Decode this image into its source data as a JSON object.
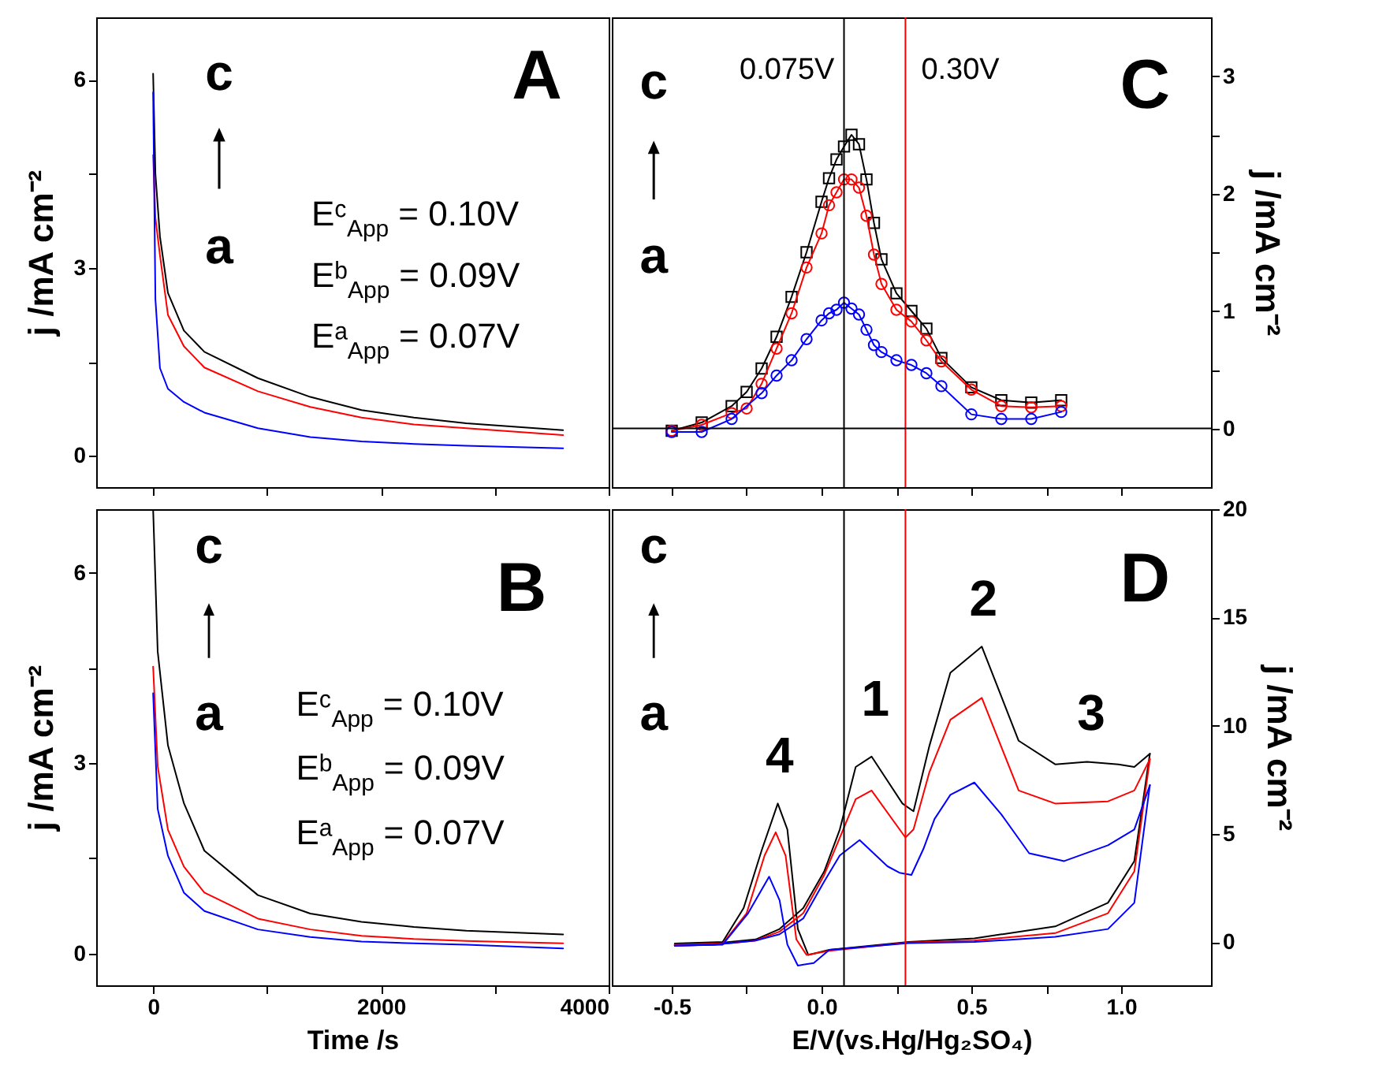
{
  "chart_data": [
    {
      "type": "line",
      "xlim": [
        -500,
        4000
      ],
      "xticks": [
        0,
        {
          "value": 1000,
          "label": null
        },
        2000,
        {
          "value": 3000,
          "label": null
        },
        4000
      ],
      "ylim": [
        -0.5,
        7
      ],
      "yticks": [
        0,
        {
          "value": 1.5,
          "label": null
        },
        3,
        {
          "value": 4.5,
          "label": null
        },
        6
      ],
      "ylabel": "j /mA cm⁻²",
      "tick_labels": "y",
      "annotations": [
        "A",
        "c",
        "a",
        "Eᶜ$_{App}$ = 0.10V",
        "Eᵇ$_{App}$ = 0.09V",
        "Eᵃ$_{App}$ = 0.07V"
      ],
      "series": [
        {
          "color": "#000000",
          "x": [
            0,
            20,
            60,
            130,
            270,
            450,
            920,
            1380,
            1830,
            2290,
            2750,
            3600
          ],
          "values": [
            6.1,
            4.5,
            3.5,
            2.6,
            2.0,
            1.66,
            1.24,
            0.94,
            0.73,
            0.61,
            0.52,
            0.41
          ]
        },
        {
          "color": "#ff0000",
          "x": [
            0,
            20,
            60,
            130,
            270,
            450,
            920,
            1380,
            1830,
            2290,
            2750,
            3600
          ],
          "values": [
            4.8,
            3.8,
            3.2,
            2.25,
            1.75,
            1.41,
            1.03,
            0.78,
            0.61,
            0.5,
            0.44,
            0.33
          ]
        },
        {
          "color": "#0000ff",
          "x": [
            0,
            20,
            60,
            130,
            270,
            450,
            920,
            1380,
            1830,
            2290,
            2750,
            3600
          ],
          "values": [
            5.8,
            2.5,
            1.4,
            1.07,
            0.86,
            0.69,
            0.44,
            0.3,
            0.23,
            0.19,
            0.16,
            0.12
          ]
        }
      ]
    },
    {
      "type": "line",
      "xlim": [
        -0.7,
        1.3
      ],
      "xticks": [
        -0.5,
        {
          "value": -0.25,
          "label": null
        },
        0,
        {
          "value": 0.25,
          "label": null
        },
        0.5,
        {
          "value": 0.75,
          "label": null
        },
        1
      ],
      "ylim": [
        -0.5,
        3.5
      ],
      "yticks": [
        0,
        {
          "value": 0.5,
          "label": null
        },
        1,
        {
          "value": 1.5,
          "label": null
        },
        2,
        {
          "value": 2.5,
          "label": null
        },
        3
      ],
      "ylabel": "j /mA cm⁻²",
      "tick_labels": "y",
      "ref_lines": [
        {
          "axis": "x",
          "value": 0.075,
          "label": "0.075V",
          "color": "#000000"
        },
        {
          "axis": "x",
          "value": 0.28,
          "label": "0.30V",
          "color": "#ff0000"
        },
        {
          "axis": "y",
          "value": 0,
          "color": "#000000"
        }
      ],
      "annotations": [
        "C",
        "c",
        "a"
      ],
      "series": [
        {
          "color": "#000000",
          "marker": "square",
          "x": [
            -0.5,
            -0.4,
            -0.3,
            -0.25,
            -0.2,
            -0.15,
            -0.1,
            -0.05,
            0,
            0.025,
            0.05,
            0.075,
            0.1,
            0.125,
            0.15,
            0.175,
            0.2,
            0.25,
            0.3,
            0.35,
            0.4,
            0.5,
            0.6,
            0.7,
            0.8
          ],
          "values": [
            -0.02,
            0.05,
            0.19,
            0.31,
            0.51,
            0.78,
            1.12,
            1.5,
            1.93,
            2.13,
            2.29,
            2.4,
            2.5,
            2.42,
            2.12,
            1.75,
            1.44,
            1.15,
            1.0,
            0.85,
            0.6,
            0.35,
            0.24,
            0.22,
            0.24
          ]
        },
        {
          "color": "#ff0000",
          "marker": "circle",
          "x": [
            -0.5,
            -0.4,
            -0.3,
            -0.25,
            -0.2,
            -0.15,
            -0.1,
            -0.05,
            0,
            0.025,
            0.05,
            0.075,
            0.1,
            0.125,
            0.15,
            0.175,
            0.2,
            0.25,
            0.3,
            0.35,
            0.4,
            0.5,
            0.6,
            0.7,
            0.8
          ],
          "values": [
            -0.02,
            0.03,
            0.13,
            0.17,
            0.38,
            0.68,
            0.98,
            1.37,
            1.66,
            1.9,
            2.01,
            2.12,
            2.12,
            2.05,
            1.81,
            1.48,
            1.23,
            1.01,
            0.91,
            0.75,
            0.57,
            0.33,
            0.19,
            0.18,
            0.19
          ]
        },
        {
          "color": "#0000ff",
          "marker": "circle",
          "x": [
            -0.5,
            -0.4,
            -0.3,
            -0.2,
            -0.15,
            -0.1,
            -0.05,
            0,
            0.025,
            0.05,
            0.075,
            0.1,
            0.125,
            0.15,
            0.175,
            0.2,
            0.25,
            0.3,
            0.35,
            0.4,
            0.5,
            0.6,
            0.7,
            0.8
          ],
          "values": [
            -0.03,
            -0.03,
            0.08,
            0.3,
            0.45,
            0.58,
            0.76,
            0.92,
            0.98,
            1.01,
            1.07,
            1.02,
            0.97,
            0.84,
            0.71,
            0.65,
            0.58,
            0.54,
            0.47,
            0.36,
            0.12,
            0.08,
            0.08,
            0.14
          ]
        }
      ]
    },
    {
      "type": "line",
      "xlim": [
        -500,
        4000
      ],
      "xticks": [
        0,
        {
          "value": 1000,
          "label": null
        },
        2000,
        {
          "value": 3000,
          "label": null
        },
        4000
      ],
      "ylim": [
        -0.5,
        7
      ],
      "yticks": [
        0,
        {
          "value": 1.5,
          "label": null
        },
        3,
        {
          "value": 4.5,
          "label": null
        },
        6
      ],
      "xlabel": "Time /s",
      "ylabel": "j /mA cm⁻²",
      "annotations": [
        "B",
        "c",
        "a",
        "Eᶜ$_{App}$ = 0.10V",
        "Eᵇ$_{App}$ = 0.09V",
        "Eᵃ$_{App}$ = 0.07V"
      ],
      "series": [
        {
          "color": "#000000",
          "x": [
            0,
            40,
            130,
            270,
            450,
            920,
            1380,
            1830,
            2290,
            2750,
            3600
          ],
          "values": [
            7.0,
            4.76,
            3.28,
            2.37,
            1.62,
            0.92,
            0.63,
            0.5,
            0.42,
            0.36,
            0.3
          ]
        },
        {
          "color": "#ff0000",
          "x": [
            0,
            40,
            130,
            270,
            450,
            920,
            1380,
            1830,
            2290,
            2750,
            3600
          ],
          "values": [
            4.52,
            2.95,
            1.95,
            1.37,
            0.96,
            0.55,
            0.38,
            0.28,
            0.23,
            0.2,
            0.16
          ]
        },
        {
          "color": "#0000ff",
          "x": [
            0,
            40,
            130,
            270,
            450,
            920,
            1380,
            1830,
            2290,
            2750,
            3600
          ],
          "values": [
            4.1,
            2.28,
            1.54,
            0.96,
            0.67,
            0.38,
            0.26,
            0.19,
            0.16,
            0.14,
            0.08
          ]
        }
      ]
    },
    {
      "type": "line",
      "xlim": [
        -0.7,
        1.3
      ],
      "xticks": [
        {
          "value": -0.5,
          "label": "-0.5"
        },
        {
          "value": -0.25,
          "label": null
        },
        {
          "value": 0,
          "label": "0.0"
        },
        {
          "value": 0.25,
          "label": null
        },
        0.5,
        {
          "value": 0.75,
          "label": null
        },
        {
          "value": 1,
          "label": "1.0"
        }
      ],
      "ylim": [
        -2,
        20
      ],
      "yticks": [
        0,
        5,
        10,
        15,
        20
      ],
      "xlabel": "E/V(vs.Hg/Hg₂SO₄)",
      "ylabel": "j /mA cm⁻²",
      "ref_lines": [
        {
          "axis": "x",
          "value": 0.075,
          "color": "#000000"
        },
        {
          "axis": "x",
          "value": 0.28,
          "color": "#ff0000"
        }
      ],
      "annotations": [
        "D",
        "c",
        "a",
        "1",
        "2",
        "3",
        "4"
      ],
      "series": [
        {
          "color": "#000000",
          "x": [
            -0.49,
            -0.33,
            -0.26,
            -0.2,
            -0.146,
            -0.114,
            -0.079,
            -0.044,
            0.026,
            0.29,
            0.51,
            0.78,
            0.956,
            1.044,
            1.096
          ],
          "values": [
            -0.07,
            0.0,
            1.57,
            4.23,
            6.4,
            5.2,
            0.6,
            -0.6,
            -0.36,
            0.0,
            0.17,
            0.72,
            1.81,
            3.74,
            8.7
          ]
        },
        {
          "color": "#000000",
          "x": [
            1.096,
            1.044,
            0.991,
            0.886,
            0.78,
            0.658,
            0.535,
            0.43,
            0.36,
            0.307,
            0.27,
            0.167,
            0.114,
            0.061,
            0.009,
            -0.061,
            -0.14,
            -0.22,
            -0.36,
            -0.49
          ],
          "values": [
            8.7,
            8.09,
            8.21,
            8.33,
            8.21,
            9.3,
            13.65,
            12.44,
            9.06,
            6.04,
            6.4,
            8.57,
            8.09,
            5.2,
            3.26,
            1.57,
            0.6,
            0.12,
            -0.07,
            -0.12
          ]
        },
        {
          "color": "#ff0000",
          "x": [
            -0.49,
            -0.33,
            -0.25,
            -0.19,
            -0.153,
            -0.12,
            -0.084,
            -0.05,
            0.026,
            0.29,
            0.51,
            0.78,
            0.956,
            1.044,
            1.096
          ],
          "values": [
            -0.12,
            -0.07,
            1.33,
            4.0,
            5.07,
            4.0,
            0.12,
            -0.6,
            -0.41,
            -0.02,
            0.07,
            0.41,
            1.33,
            3.26,
            8.45
          ]
        },
        {
          "color": "#ff0000",
          "x": [
            1.096,
            1.044,
            0.956,
            0.78,
            0.658,
            0.535,
            0.43,
            0.36,
            0.307,
            0.28,
            0.167,
            0.114,
            0.065,
            0.009,
            -0.061,
            -0.14,
            -0.22,
            -0.36,
            -0.49
          ],
          "values": [
            8.45,
            7.0,
            6.5,
            6.4,
            7.0,
            11.28,
            10.27,
            7.85,
            5.2,
            4.83,
            7.0,
            6.6,
            4.95,
            3.1,
            1.33,
            0.48,
            0.07,
            -0.12,
            -0.17
          ]
        },
        {
          "color": "#0000ff",
          "x": [
            -0.49,
            -0.33,
            -0.245,
            -0.175,
            -0.14,
            -0.114,
            -0.079,
            -0.026,
            0.026,
            0.29,
            0.51,
            0.78,
            0.956,
            1.044,
            1.096
          ],
          "values": [
            -0.17,
            -0.12,
            1.33,
            3.02,
            1.93,
            -0.12,
            -1.09,
            -0.97,
            -0.36,
            -0.05,
            0.0,
            0.24,
            0.6,
            1.81,
            7.25
          ]
        },
        {
          "color": "#0000ff",
          "x": [
            1.096,
            1.044,
            0.956,
            0.81,
            0.693,
            0.6,
            0.51,
            0.43,
            0.377,
            0.34,
            0.3,
            0.26,
            0.22,
            0.127,
            0.061,
            0.009,
            -0.061,
            -0.14,
            -0.22,
            -0.36,
            -0.49
          ],
          "values": [
            7.25,
            5.2,
            4.47,
            3.74,
            4.1,
            5.9,
            7.37,
            6.8,
            5.68,
            4.3,
            3.1,
            3.2,
            3.5,
            4.71,
            4.0,
            2.8,
            1.09,
            0.36,
            0.07,
            -0.12,
            -0.17
          ]
        }
      ]
    }
  ]
}
